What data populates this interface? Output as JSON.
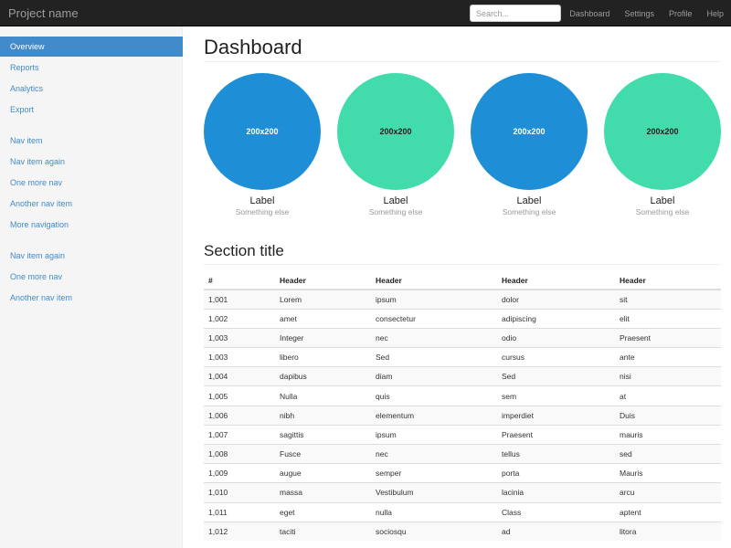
{
  "navbar": {
    "brand": "Project name",
    "search_placeholder": "Search...",
    "links": [
      "Dashboard",
      "Settings",
      "Profile",
      "Help"
    ]
  },
  "sidebar": {
    "groups": [
      [
        "Overview",
        "Reports",
        "Analytics",
        "Export"
      ],
      [
        "Nav item",
        "Nav item again",
        "One more nav",
        "Another nav item",
        "More navigation"
      ],
      [
        "Nav item again",
        "One more nav",
        "Another nav item"
      ]
    ],
    "active": "Overview"
  },
  "main": {
    "title": "Dashboard",
    "placeholders": [
      {
        "text": "200x200",
        "label": "Label",
        "sub": "Something else",
        "color": "#1e8fd6"
      },
      {
        "text": "200x200",
        "label": "Label",
        "sub": "Something else",
        "color": "#42dbac"
      },
      {
        "text": "200x200",
        "label": "Label",
        "sub": "Something else",
        "color": "#1e8fd6"
      },
      {
        "text": "200x200",
        "label": "Label",
        "sub": "Something else",
        "color": "#42dbac"
      }
    ],
    "section_title": "Section title",
    "table": {
      "headers": [
        "#",
        "Header",
        "Header",
        "Header",
        "Header"
      ],
      "rows": [
        [
          "1,001",
          "Lorem",
          "ipsum",
          "dolor",
          "sit"
        ],
        [
          "1,002",
          "amet",
          "consectetur",
          "adipiscing",
          "elit"
        ],
        [
          "1,003",
          "Integer",
          "nec",
          "odio",
          "Praesent"
        ],
        [
          "1,003",
          "libero",
          "Sed",
          "cursus",
          "ante"
        ],
        [
          "1,004",
          "dapibus",
          "diam",
          "Sed",
          "nisi"
        ],
        [
          "1,005",
          "Nulla",
          "quis",
          "sem",
          "at"
        ],
        [
          "1,006",
          "nibh",
          "elementum",
          "imperdiet",
          "Duis"
        ],
        [
          "1,007",
          "sagittis",
          "ipsum",
          "Praesent",
          "mauris"
        ],
        [
          "1,008",
          "Fusce",
          "nec",
          "tellus",
          "sed"
        ],
        [
          "1,009",
          "augue",
          "semper",
          "porta",
          "Mauris"
        ],
        [
          "1,010",
          "massa",
          "Vestibulum",
          "lacinia",
          "arcu"
        ],
        [
          "1,011",
          "eget",
          "nulla",
          "Class",
          "aptent"
        ],
        [
          "1,012",
          "taciti",
          "sociosqu",
          "ad",
          "litora"
        ]
      ]
    }
  }
}
